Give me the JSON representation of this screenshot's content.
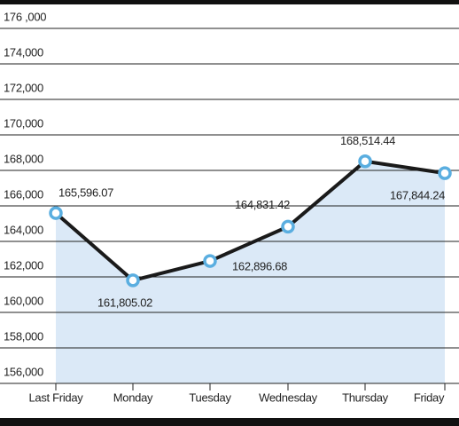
{
  "chart_data": {
    "type": "line",
    "categories": [
      "Last Friday",
      "Monday",
      "Tuesday",
      "Wednesday",
      "Thursday",
      "Friday"
    ],
    "values": [
      165596.07,
      161805.02,
      162896.68,
      164831.42,
      168514.44,
      167844.24
    ],
    "value_labels": [
      "165,596.07",
      "161,805.02",
      "162,896.68",
      "164,831.42",
      "168,514.44",
      "167,844.24"
    ],
    "color": "#1a1a1a",
    "marker_color": "#5aaee0",
    "area_color": "#dbe9f7",
    "ylim": [
      156000,
      176000
    ],
    "yticks": [
      {
        "value": 156000,
        "label": "156,000"
      },
      {
        "value": 158000,
        "label": "158,000"
      },
      {
        "value": 160000,
        "label": "160,000"
      },
      {
        "value": 162000,
        "label": "162,000"
      },
      {
        "value": 164000,
        "label": "164,000"
      },
      {
        "value": 166000,
        "label": "166,000"
      },
      {
        "value": 168000,
        "label": "168,000"
      },
      {
        "value": 170000,
        "label": "170,000"
      },
      {
        "value": 172000,
        "label": "172,000"
      },
      {
        "value": 174000,
        "label": "174,000"
      },
      {
        "value": 176000,
        "label": "176 ,000"
      }
    ],
    "grid": true
  }
}
